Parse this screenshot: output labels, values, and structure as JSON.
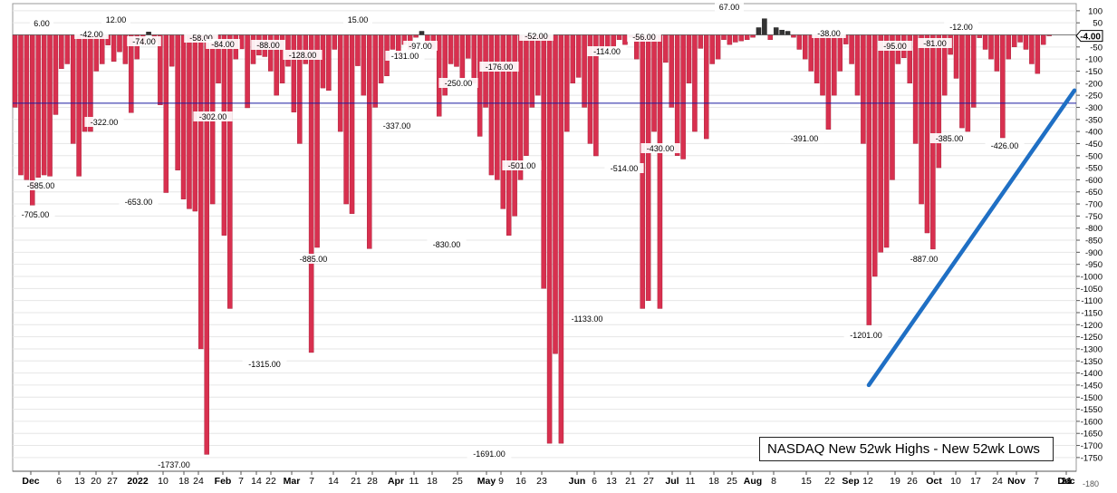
{
  "chart_data": {
    "type": "bar",
    "title": "NASDAQ New 52wk Highs - New 52wk Lows",
    "ylim": [
      -1800,
      100
    ],
    "grid": true,
    "y_ticks": [
      100,
      50,
      0,
      -50,
      -100,
      -150,
      -200,
      -250,
      -300,
      -350,
      -400,
      -450,
      -500,
      -550,
      -600,
      -650,
      -700,
      -750,
      -800,
      -850,
      -900,
      -950,
      -1000,
      -1050,
      -1100,
      -1150,
      -1200,
      -1250,
      -1300,
      -1350,
      -1400,
      -1450,
      -1500,
      -1550,
      -1600,
      -1650,
      -1700,
      -1750
    ],
    "y_ticks_bottom": "-180",
    "x_ticks": [
      "Dec",
      "6",
      "13",
      "20",
      "27",
      "2022",
      "10",
      "18",
      "24",
      "Feb",
      "7",
      "14",
      "22",
      "Mar",
      "7",
      "14",
      "21",
      "28",
      "Apr",
      "11",
      "18",
      "25",
      "May",
      "9",
      "16",
      "23",
      "Jun",
      "6",
      "13",
      "21",
      "27",
      "Jul",
      "11",
      "18",
      "25",
      "Aug",
      "8",
      "15",
      "22",
      "Sep",
      "12",
      "19",
      "26",
      "Oct",
      "10",
      "17",
      "24",
      "Nov",
      "7",
      "14",
      "21",
      "Dec"
    ],
    "bold_x_ticks": [
      "Dec",
      "2022",
      "Feb",
      "Mar",
      "Apr",
      "May",
      "Jun",
      "Jul",
      "Aug",
      "Sep",
      "Oct",
      "Nov"
    ],
    "current_value_label": "-4.00",
    "reference_line": -283,
    "trend_line": {
      "from": -1450,
      "to": -230
    },
    "annotations": [
      "6.00",
      "-42.00",
      "12.00",
      "-74.00",
      "-58.00",
      "-84.00",
      "-88.00",
      "-128.00",
      "-131.00",
      "-97.00",
      "15.00",
      "-250.00",
      "-176.00",
      "-52.00",
      "-114.00",
      "-56.00",
      "67.00",
      "-38.00",
      "-95.00",
      "-81.00",
      "-12.00",
      "-322.00",
      "-302.00",
      "-337.00",
      "-391.00",
      "-385.00",
      "-426.00",
      "-430.00",
      "-501.00",
      "-514.00",
      "-585.00",
      "-653.00",
      "-705.00",
      "-830.00",
      "-885.00",
      "-887.00",
      "-1133.00",
      "-1201.00",
      "-1315.00",
      "-1691.00",
      "-1737.00"
    ],
    "series": [
      {
        "values": [
          -300,
          -580,
          -600,
          -705,
          -590,
          -580,
          -585,
          -330,
          -140,
          -120,
          -450,
          -585,
          -400,
          -400,
          -150,
          -120,
          -42,
          -110,
          -70,
          -120,
          -322,
          -100,
          -40,
          12,
          -30,
          -290,
          -653,
          -130,
          -560,
          -680,
          -720,
          -730,
          -1300,
          -1737,
          -700,
          -200,
          -830,
          -1133,
          -100,
          -58,
          -302,
          -120,
          -84,
          -90,
          -150,
          -250,
          -200,
          -130,
          -320,
          -450,
          -120,
          -1315,
          -880,
          -220,
          -230,
          -60,
          -400,
          -700,
          -740,
          -128,
          -250,
          -885,
          -300,
          -200,
          -170,
          -60,
          -90,
          -40,
          -60,
          -10,
          15,
          -40,
          -60,
          -337,
          -250,
          -120,
          -131,
          -180,
          -97,
          -200,
          -420,
          -300,
          -580,
          -600,
          -720,
          -830,
          -750,
          -600,
          -500,
          -300,
          -250,
          -1050,
          -1691,
          -1320,
          -1691,
          -400,
          -200,
          -176,
          -300,
          -450,
          -501,
          -60,
          -50,
          -52,
          -20,
          -40,
          -10,
          -100,
          -1133,
          -1100,
          -400,
          -1133,
          -114,
          -300,
          -500,
          -514,
          -200,
          -400,
          -56,
          -430,
          -120,
          -100,
          -20,
          -40,
          -30,
          -25,
          -20,
          -10,
          30,
          67,
          -20,
          30,
          20,
          15,
          -10,
          -60,
          -100,
          -150,
          -200,
          -250,
          -391,
          -250,
          -150,
          -38,
          -120,
          -250,
          -450,
          -1201,
          -1000,
          -900,
          -880,
          -600,
          -120,
          -95,
          -200,
          -450,
          -700,
          -820,
          -887,
          -550,
          -250,
          -81,
          -180,
          -385,
          -400,
          -300,
          -12,
          -60,
          -100,
          -150,
          -426,
          -100,
          -50,
          -30,
          -60,
          -120,
          -160,
          -40,
          -4
        ]
      }
    ]
  }
}
